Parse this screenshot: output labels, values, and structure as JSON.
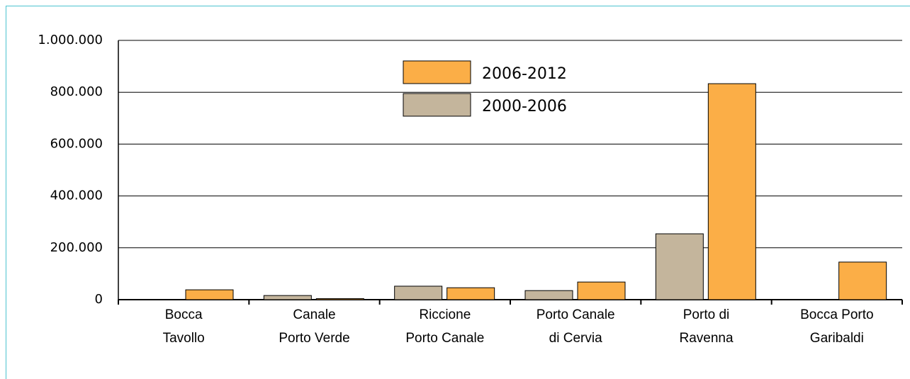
{
  "chart_data": {
    "type": "bar",
    "categories": [
      "Bocca\nTavollo",
      "Canale\nPorto Verde",
      "Riccione\nPorto Canale",
      "Porto Canale\ndi Cervia",
      "Porto di\nRavenna",
      "Bocca Porto\nGaribaldi"
    ],
    "series": [
      {
        "name": "2000-2006",
        "color": "#c4b59c",
        "values": [
          0,
          16000,
          52000,
          35000,
          254000,
          0
        ]
      },
      {
        "name": "2006-2012",
        "color": "#fbae47",
        "values": [
          38000,
          4000,
          46000,
          68000,
          833000,
          145000
        ]
      }
    ],
    "ylim": [
      0,
      1000000
    ],
    "yticks": [
      0,
      {
        "value": 200000,
        "label": "200.000"
      },
      {
        "value": 400000,
        "label": "400.000"
      },
      {
        "value": 600000,
        "label": "600.000"
      },
      {
        "value": 800000,
        "label": "800.000"
      },
      {
        "value": 1000000,
        "label": "1.000.000"
      }
    ],
    "grid": true
  }
}
